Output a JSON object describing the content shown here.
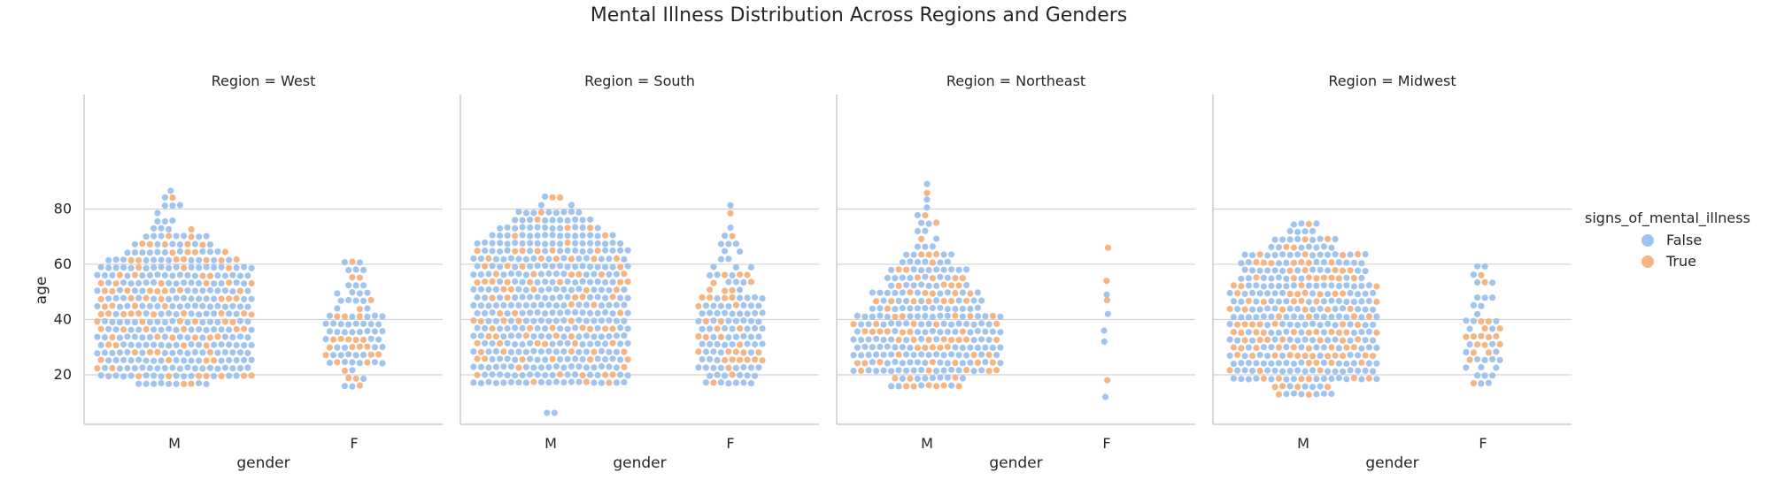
{
  "title": "Mental Illness Distribution Across Regions and Genders",
  "legend": {
    "title": "signs_of_mental_illness",
    "items": [
      {
        "label": "False",
        "color": "#a1c4ef"
      },
      {
        "label": "True",
        "color": "#f5b482"
      }
    ]
  },
  "colors": {
    "false": "#a1c4ef",
    "true": "#f5b482",
    "grid": "#d0d0d0",
    "axis": "#cccccc",
    "text": "#262626"
  },
  "chart_data": {
    "type": "scatter",
    "subtype": "swarm",
    "x_categories": [
      "M",
      "F"
    ],
    "xlabel": "gender",
    "ylabel": "age",
    "yticks": [
      20,
      40,
      60,
      80
    ],
    "ylim": [
      0,
      95
    ],
    "grid": "horizontal",
    "legend_position": "right",
    "hue": "signs_of_mental_illness",
    "panels": [
      {
        "title": "Region = West",
        "groups": [
          {
            "gender": "M",
            "min_age": 14,
            "max_age": 89,
            "shape": "dense block 17-60 with tail to 89",
            "true_fraction": 0.28
          },
          {
            "gender": "F",
            "min_age": 16,
            "max_age": 62,
            "shape": "narrow swarm, densest 25-40",
            "true_fraction": 0.38
          }
        ]
      },
      {
        "title": "Region = South",
        "groups": [
          {
            "gender": "M",
            "min_age": 6,
            "max_age": 86,
            "shape": "very dense block 16-67 with tail to 86",
            "true_fraction": 0.2
          },
          {
            "gender": "F",
            "min_age": 17,
            "max_age": 84,
            "shape": "swarm, densest 25-55",
            "true_fraction": 0.35
          }
        ]
      },
      {
        "title": "Region = Northeast",
        "groups": [
          {
            "gender": "M",
            "min_age": 16,
            "max_age": 91,
            "shape": "bulge 20-40 narrowing upward to 91",
            "true_fraction": 0.3
          },
          {
            "gender": "F",
            "min_age": 12,
            "max_age": 66,
            "shape": "sparse single column",
            "true_fraction": 0.3
          }
        ]
      },
      {
        "title": "Region = Midwest",
        "groups": [
          {
            "gender": "M",
            "min_age": 13,
            "max_age": 77,
            "shape": "dense block 18-64 with tail to 77",
            "true_fraction": 0.3
          },
          {
            "gender": "F",
            "min_age": 17,
            "max_age": 61,
            "shape": "narrow sparse swarm",
            "true_fraction": 0.4
          }
        ]
      }
    ]
  }
}
